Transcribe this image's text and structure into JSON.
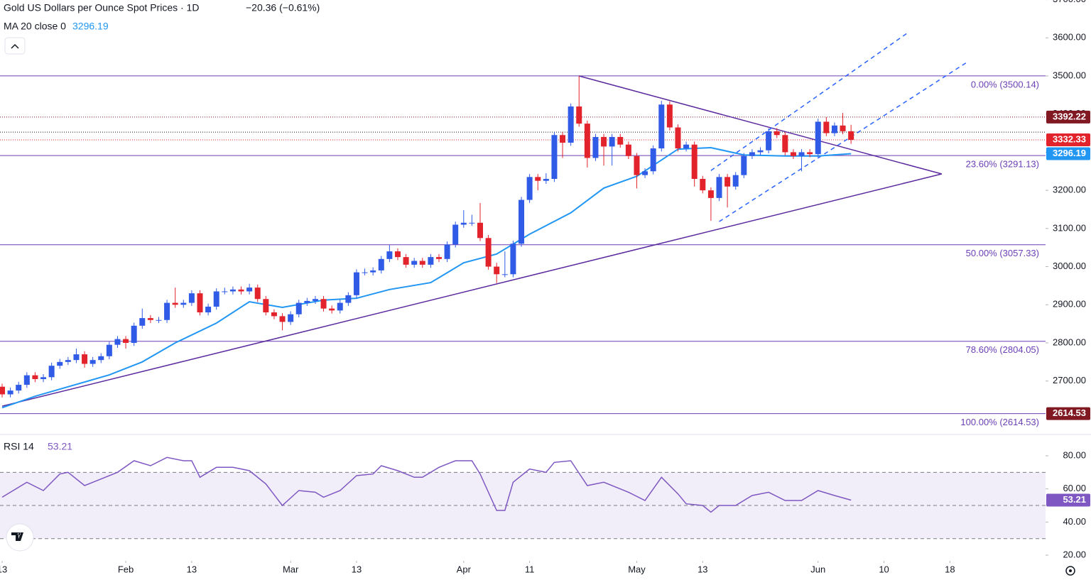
{
  "chart_data": {
    "type": "candlestick",
    "title": "Gold US Dollars per Ounce Spot Prices · 1D",
    "change": "−20.36 (−0.61%)",
    "up_color": "#2f5be6",
    "down_color": "#e3232c",
    "xlim": [
      -0.26,
      126.6
    ],
    "xticks": [
      {
        "value": 0,
        "label": "13"
      },
      {
        "value": 15,
        "label": "Feb"
      },
      {
        "value": 23,
        "label": "13"
      },
      {
        "value": 35,
        "label": "Mar"
      },
      {
        "value": 43,
        "label": "13"
      },
      {
        "value": 56,
        "label": "Apr"
      },
      {
        "value": 64,
        "label": "11"
      },
      {
        "value": 77,
        "label": "May"
      },
      {
        "value": 85,
        "label": "13"
      },
      {
        "value": 99,
        "label": "Jun"
      },
      {
        "value": 107,
        "label": "10"
      },
      {
        "value": 115,
        "label": "18"
      }
    ],
    "ylim": [
      2559.8,
      3699.2
    ],
    "yticks": [
      {
        "value": 3700,
        "label": "3700.00"
      },
      {
        "value": 3600,
        "label": "3600.00"
      },
      {
        "value": 3500,
        "label": "3500.00"
      },
      {
        "value": 3400,
        "label": "3400.00"
      },
      {
        "value": 3300,
        "label": "3300.00"
      },
      {
        "value": 3200,
        "label": "3200.00"
      },
      {
        "value": 3100,
        "label": "3100.00"
      },
      {
        "value": 3000,
        "label": "3000.00"
      },
      {
        "value": 2900,
        "label": "2900.00"
      },
      {
        "value": 2800,
        "label": "2800.00"
      },
      {
        "value": 2700,
        "label": "2700.00"
      }
    ],
    "candles": {
      "open": [
        2685,
        2665,
        2675,
        2690,
        2715,
        2705,
        2710,
        2740,
        2750,
        2755,
        2770,
        2745,
        2755,
        2765,
        2795,
        2810,
        2800,
        2845,
        2865,
        2860,
        2860,
        2905,
        2900,
        2905,
        2930,
        2880,
        2895,
        2935,
        2935,
        2940,
        2935,
        2945,
        2915,
        2880,
        2870,
        2855,
        2875,
        2905,
        2910,
        2915,
        2890,
        2885,
        2905,
        2925,
        2985,
        2985,
        2990,
        3020,
        3040,
        3025,
        3005,
        3015,
        3005,
        3025,
        3020,
        3058,
        3110,
        3115,
        3115,
        3075,
        3000,
        2980,
        2980,
        3060,
        3175,
        3235,
        3225,
        3230,
        3345,
        3325,
        3420,
        3375,
        3285,
        3340,
        3315,
        3340,
        3320,
        3290,
        3240,
        3250,
        3310,
        3425,
        3365,
        3310,
        3320,
        3230,
        3200,
        3180,
        3235,
        3210,
        3240,
        3290,
        3300,
        3305,
        3355,
        3345,
        3300,
        3290,
        3300,
        3295,
        3380,
        3350,
        3370,
        3355
      ],
      "high": [
        2693,
        2683,
        2698,
        2723,
        2723,
        2718,
        2748,
        2758,
        2763,
        2785,
        2778,
        2763,
        2773,
        2803,
        2818,
        2818,
        2853,
        2890,
        2873,
        2868,
        2913,
        2945,
        2913,
        2938,
        2938,
        2903,
        2943,
        2945,
        2948,
        2948,
        2955,
        2953,
        2923,
        2888,
        2878,
        2883,
        2913,
        2918,
        2923,
        2923,
        2898,
        2913,
        2933,
        2993,
        2995,
        2998,
        3028,
        3057,
        3048,
        3033,
        3023,
        3023,
        3033,
        3033,
        3066,
        3118,
        3148,
        3136,
        3167,
        3083,
        3010,
        3040,
        3068,
        3183,
        3243,
        3243,
        3245,
        3353,
        3353,
        3428,
        3500,
        3383,
        3348,
        3348,
        3348,
        3348,
        3328,
        3298,
        3258,
        3318,
        3435,
        3433,
        3373,
        3328,
        3328,
        3238,
        3208,
        3243,
        3243,
        3248,
        3298,
        3308,
        3313,
        3363,
        3363,
        3353,
        3308,
        3308,
        3308,
        3388,
        3392,
        3378,
        3403,
        3372
      ],
      "low": [
        2657,
        2657,
        2667,
        2682,
        2697,
        2697,
        2702,
        2732,
        2742,
        2747,
        2735,
        2737,
        2747,
        2757,
        2787,
        2785,
        2792,
        2837,
        2852,
        2852,
        2852,
        2892,
        2892,
        2897,
        2872,
        2872,
        2887,
        2927,
        2927,
        2927,
        2927,
        2907,
        2872,
        2862,
        2833,
        2847,
        2867,
        2897,
        2902,
        2882,
        2877,
        2877,
        2897,
        2917,
        2977,
        2977,
        2982,
        3012,
        3017,
        2997,
        2997,
        2997,
        2997,
        3012,
        3012,
        3050,
        3102,
        3107,
        3067,
        2992,
        2957,
        2972,
        2972,
        3052,
        3167,
        3200,
        3217,
        3222,
        3285,
        3317,
        3367,
        3260,
        3277,
        3265,
        3265,
        3312,
        3282,
        3205,
        3232,
        3242,
        3302,
        3357,
        3302,
        3302,
        3210,
        3192,
        3120,
        3172,
        3155,
        3202,
        3232,
        3282,
        3292,
        3297,
        3337,
        3292,
        3282,
        3250,
        3287,
        3287,
        3342,
        3342,
        3347,
        3322
      ],
      "close": [
        2665,
        2675,
        2690,
        2715,
        2705,
        2710,
        2740,
        2750,
        2755,
        2770,
        2745,
        2755,
        2765,
        2795,
        2810,
        2800,
        2845,
        2865,
        2860,
        2860,
        2905,
        2900,
        2905,
        2930,
        2880,
        2895,
        2935,
        2935,
        2940,
        2935,
        2945,
        2915,
        2880,
        2870,
        2855,
        2875,
        2905,
        2910,
        2915,
        2890,
        2885,
        2905,
        2925,
        2985,
        2985,
        2990,
        3020,
        3040,
        3025,
        3005,
        3015,
        3005,
        3025,
        3020,
        3058,
        3110,
        3115,
        3115,
        3075,
        3000,
        2980,
        2980,
        3060,
        3175,
        3235,
        3225,
        3230,
        3345,
        3325,
        3420,
        3375,
        3285,
        3340,
        3315,
        3340,
        3320,
        3290,
        3240,
        3250,
        3310,
        3425,
        3365,
        3310,
        3320,
        3230,
        3200,
        3180,
        3235,
        3210,
        3240,
        3290,
        3300,
        3305,
        3355,
        3345,
        3300,
        3290,
        3300,
        3295,
        3380,
        3350,
        3370,
        3355,
        3332.33
      ]
    },
    "ma": {
      "name": "MA 20 close 0",
      "color": "#2196f3",
      "x": [
        0,
        4,
        8,
        13,
        17,
        21,
        26,
        30,
        34,
        39,
        43,
        47,
        52,
        56,
        60,
        64,
        69,
        73,
        77,
        82,
        86,
        90,
        95,
        99,
        103
      ],
      "values": [
        2630,
        2660,
        2685,
        2716,
        2750,
        2800,
        2852,
        2908,
        2893,
        2912,
        2917,
        2940,
        2958,
        3010,
        3033,
        3085,
        3141,
        3206,
        3237,
        3308,
        3312,
        3293,
        3290,
        3290,
        3296.19
      ]
    },
    "fib_color": "#6a3fb5",
    "fib": [
      {
        "value": 3500.14,
        "label": "0.00% (3500.14)"
      },
      {
        "value": 3291.13,
        "label": "23.60% (3291.13)"
      },
      {
        "value": 3057.33,
        "label": "50.00% (3057.33)"
      },
      {
        "value": 2804.05,
        "label": "78.60% (2804.05)"
      },
      {
        "value": 2614.53,
        "label": "100.00% (2614.53)"
      }
    ],
    "hlines": [
      {
        "value": 3392.22,
        "color": "#801922"
      },
      {
        "value": 3352.69,
        "color": "#131722"
      }
    ],
    "high_tag_color": "#801922",
    "trendlines": [
      {
        "color": "#5b2a9e",
        "dash": false,
        "points": [
          [
            70,
            3500
          ],
          [
            114,
            3243
          ]
        ]
      },
      {
        "color": "#5b2a9e",
        "dash": false,
        "points": [
          [
            0,
            2634
          ],
          [
            114,
            3243
          ]
        ]
      },
      {
        "color": "#2962ff",
        "dash": true,
        "points": [
          [
            87,
            3118
          ],
          [
            117,
            3535
          ]
        ]
      },
      {
        "color": "#2962ff",
        "dash": true,
        "points": [
          [
            86,
            3252
          ],
          [
            110,
            3615
          ]
        ]
      }
    ],
    "rsi": {
      "name": "RSI 14",
      "color": "#7e57c2",
      "ylim": [
        16.6,
        92.85
      ],
      "yticks": [
        {
          "value": 80,
          "label": "80.00"
        },
        {
          "value": 60,
          "label": "60.00"
        },
        {
          "value": 40,
          "label": "40.00"
        },
        {
          "value": 20,
          "label": "20.00"
        }
      ],
      "bands": [
        70,
        50,
        30
      ],
      "x": [
        0,
        3,
        5,
        7,
        8,
        10,
        12,
        14,
        16,
        18,
        20,
        22,
        23,
        24,
        26,
        28,
        30,
        32,
        34,
        36,
        38,
        39,
        41,
        43,
        45,
        46,
        48,
        50,
        51,
        53,
        55,
        57,
        58,
        60,
        61,
        62,
        64,
        66,
        67,
        69,
        71,
        73,
        75,
        76,
        78,
        80,
        82,
        83,
        85,
        86,
        87,
        89,
        91,
        93,
        95,
        97,
        99,
        101,
        103
      ],
      "values": [
        55,
        64,
        59,
        69,
        70,
        62,
        66,
        70,
        77,
        74,
        79,
        77,
        77,
        67,
        73,
        73,
        71,
        63,
        50,
        59,
        58,
        55,
        59,
        68,
        69,
        74,
        71,
        67,
        67,
        73,
        77,
        77,
        69,
        47,
        47,
        64,
        72,
        70,
        76,
        77,
        62,
        64,
        60,
        58,
        53,
        67,
        57,
        51,
        50,
        46,
        50,
        50,
        56,
        58,
        53,
        53,
        59,
        56,
        53.21
      ]
    }
  }
}
